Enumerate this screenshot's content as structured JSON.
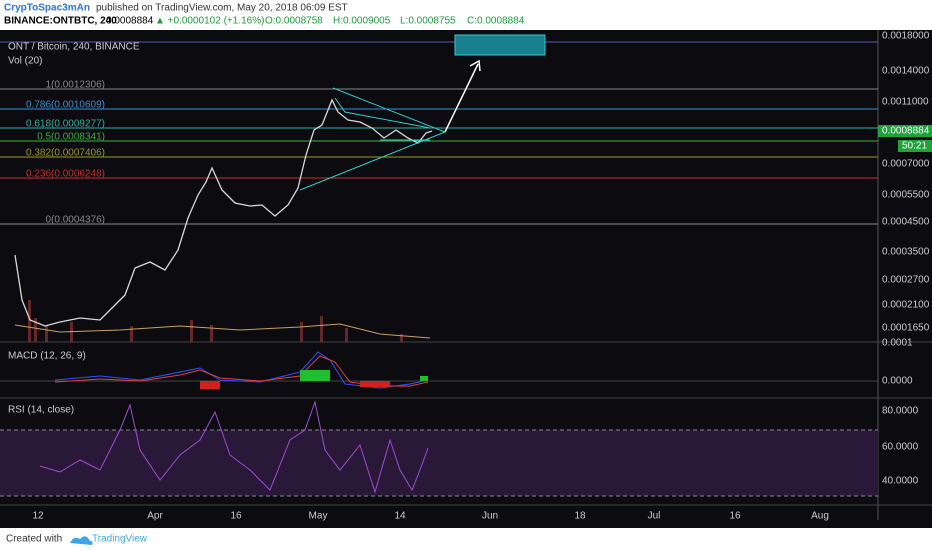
{
  "header": {
    "author": "CrypToSpac3mAn",
    "published": "published on TradingView.com, May 20, 2018 06:09 EST",
    "symbol": "BINANCE:ONTBTC, 240",
    "last": "0.0008884",
    "change": "▲ +0.0000102 (+1.16%)",
    "ohlc": [
      "O:0.0008758",
      "H:0.0009005",
      "L:0.0008755",
      "C:0.0008884"
    ]
  },
  "main": {
    "title": "ONT / Bitcoin, 240, BINANCE",
    "volume": "Vol (20)",
    "fib": [
      "1(0.0012306)",
      "0.786(0.0010609)",
      "0.618(0.0009277)",
      "0.5(0.0008341)",
      "0.382(0.0007406)",
      "0.236(0.0006248)",
      "0(0.0004376)"
    ],
    "price_axis": [
      "0.0018000",
      "0.0014000",
      "0.0011000",
      "0.0007000",
      "0.0005500",
      "0.0004500",
      "0.0003500",
      "0.0002700",
      "0.0002100",
      "0.0001650"
    ],
    "last_price": "0.0008884",
    "countdown": "50:21"
  },
  "macd": {
    "title": "MACD (12, 26, 9)",
    "axis": [
      "0.0001",
      "0.0000"
    ]
  },
  "rsi": {
    "title": "RSI (14, close)",
    "axis": [
      "80.0000",
      "60.0000",
      "40.0000"
    ]
  },
  "time_axis": [
    "12",
    "Apr",
    "16",
    "May",
    "14",
    "Jun",
    "18",
    "Jul",
    "16",
    "Aug"
  ],
  "footer": {
    "created": "Created with",
    "brand": "TradingView"
  }
}
